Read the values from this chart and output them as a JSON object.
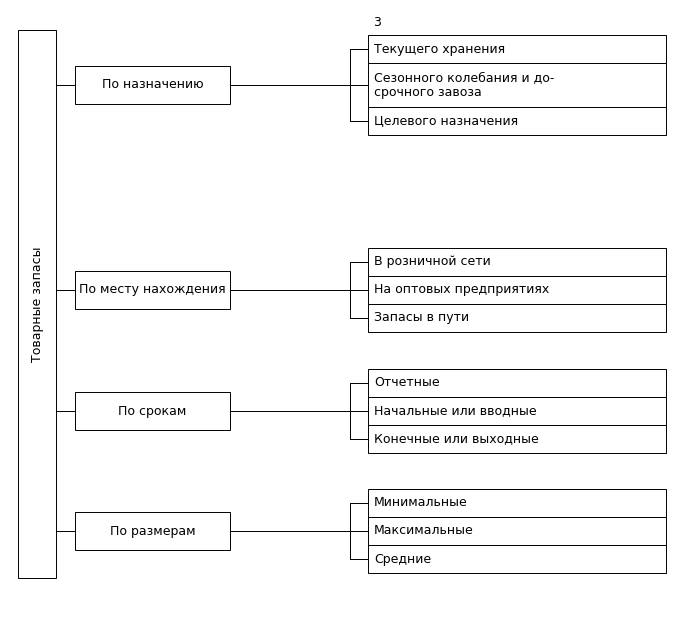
{
  "title_annotation": "3",
  "root_label": "Товарные запасы",
  "background_color": "#ffffff",
  "box_edge_color": "#000000",
  "line_color": "#000000",
  "text_color": "#000000",
  "categories": [
    {
      "label": "По назначению",
      "items": [
        "Текущего хранения",
        "Сезонного колебания и до-\nсрочного завоза",
        "Целевого назначения"
      ]
    },
    {
      "label": "По месту нахождения",
      "items": [
        "В розничной сети",
        "На оптовых предприятиях",
        "Запасы в пути"
      ]
    },
    {
      "label": "По срокам",
      "items": [
        "Отчетные",
        "Начальные или вводные",
        "Конечные или выходные"
      ]
    },
    {
      "label": "По размерам",
      "items": [
        "Минимальные",
        "Максимальные",
        "Средние"
      ]
    }
  ],
  "figsize": [
    6.97,
    6.18
  ],
  "dpi": 100,
  "font_size": 9
}
